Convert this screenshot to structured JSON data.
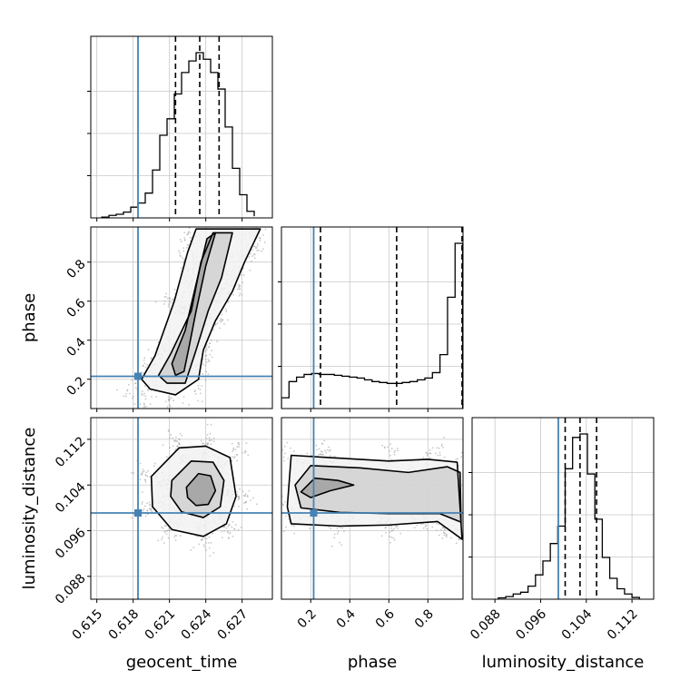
{
  "chart_data": {
    "type": "corner",
    "parameters": [
      "geocent_time",
      "phase",
      "luminosity_distance"
    ],
    "truths": {
      "geocent_time": 0.6184,
      "phase": 0.215,
      "luminosity_distance": 0.0991
    },
    "colors": {
      "truth": "#4682b4",
      "hist": "#000000",
      "grid": "#c8c8c8",
      "point": "#9a9a9a"
    },
    "grid": true,
    "quantiles": {
      "geocent_time": [
        0.6215,
        0.6235,
        0.6251
      ],
      "phase": [
        0.25,
        0.64,
        0.975
      ],
      "luminosity_distance": [
        0.1003,
        0.1029,
        0.1058
      ]
    },
    "axes": {
      "geocent_time": {
        "xlabel": "geocent_time",
        "range": [
          0.6145,
          0.6295
        ],
        "ticks": [
          0.615,
          0.618,
          0.621,
          0.624,
          0.627
        ],
        "tick_labels": [
          "0.615",
          "0.618",
          "0.621",
          "0.624",
          "0.627"
        ]
      },
      "phase": {
        "xlabel": "phase",
        "ylabel": "phase",
        "range": [
          0.05,
          0.98
        ],
        "ticks": [
          0.2,
          0.4,
          0.6,
          0.8
        ],
        "tick_labels": [
          "0.2",
          "0.4",
          "0.6",
          "0.8"
        ]
      },
      "luminosity_distance": {
        "xlabel": "luminosity_distance",
        "ylabel": "luminosity_distance",
        "range": [
          0.084,
          0.1158
        ],
        "ticks": [
          0.088,
          0.096,
          0.104,
          0.112
        ],
        "tick_labels": [
          "0.088",
          "0.096",
          "0.104",
          "0.112"
        ]
      }
    },
    "histograms": {
      "geocent_time": {
        "bins": [
          0.6154,
          0.616,
          0.6166,
          0.6172,
          0.6178,
          0.6184,
          0.619,
          0.6196,
          0.6202,
          0.6208,
          0.6214,
          0.622,
          0.6226,
          0.6232,
          0.6238,
          0.6244,
          0.625,
          0.6256,
          0.6262,
          0.6268,
          0.6274,
          0.628
        ],
        "values": [
          0.005,
          0.015,
          0.022,
          0.035,
          0.065,
          0.09,
          0.15,
          0.29,
          0.5,
          0.6,
          0.75,
          0.88,
          0.95,
          1.0,
          0.96,
          0.88,
          0.78,
          0.55,
          0.3,
          0.14,
          0.04,
          0.01
        ]
      },
      "phase": {
        "bins": [
          0.05,
          0.0887,
          0.1273,
          0.166,
          0.2047,
          0.2433,
          0.282,
          0.3207,
          0.3593,
          0.398,
          0.4367,
          0.4753,
          0.514,
          0.5527,
          0.5913,
          0.63,
          0.6687,
          0.7073,
          0.746,
          0.7847,
          0.8233,
          0.862,
          0.9007,
          0.9393,
          0.978
        ],
        "values": [
          0.06,
          0.15,
          0.175,
          0.19,
          0.195,
          0.19,
          0.19,
          0.185,
          0.18,
          0.175,
          0.17,
          0.16,
          0.15,
          0.145,
          0.14,
          0.14,
          0.145,
          0.15,
          0.16,
          0.17,
          0.2,
          0.3,
          0.62,
          0.92
        ]
      },
      "luminosity_distance": {
        "bins": [
          0.0886,
          0.0899,
          0.0912,
          0.0925,
          0.0938,
          0.0951,
          0.0964,
          0.0977,
          0.099,
          0.1003,
          0.1016,
          0.1029,
          0.1042,
          0.1055,
          0.1068,
          0.1081,
          0.1094,
          0.1107,
          0.112,
          0.1133
        ],
        "values": [
          0.008,
          0.015,
          0.03,
          0.04,
          0.075,
          0.14,
          0.22,
          0.32,
          0.42,
          0.75,
          0.93,
          0.95,
          0.72,
          0.46,
          0.24,
          0.12,
          0.06,
          0.03,
          0.01
        ]
      }
    },
    "contours": {
      "geocent_time__phase": {
        "levels": [
          [
            [
              0.6194,
              0.15
            ],
            [
              0.6215,
              0.12
            ],
            [
              0.6234,
              0.2
            ],
            [
              0.6238,
              0.35
            ],
            [
              0.6248,
              0.5
            ],
            [
              0.6262,
              0.65
            ],
            [
              0.6272,
              0.8
            ],
            [
              0.6285,
              0.97
            ],
            [
              0.6232,
              0.97
            ],
            [
              0.6225,
              0.85
            ],
            [
              0.6214,
              0.6
            ],
            [
              0.6198,
              0.32
            ],
            [
              0.6187,
              0.2
            ]
          ],
          [
            [
              0.6208,
              0.18
            ],
            [
              0.6223,
              0.18
            ],
            [
              0.6232,
              0.35
            ],
            [
              0.6242,
              0.55
            ],
            [
              0.6253,
              0.72
            ],
            [
              0.6262,
              0.95
            ],
            [
              0.6246,
              0.95
            ],
            [
              0.6236,
              0.8
            ],
            [
              0.6228,
              0.55
            ],
            [
              0.6211,
              0.33
            ],
            [
              0.6201,
              0.22
            ]
          ],
          [
            [
              0.6215,
              0.22
            ],
            [
              0.6222,
              0.24
            ],
            [
              0.6226,
              0.36
            ],
            [
              0.6232,
              0.55
            ],
            [
              0.624,
              0.78
            ],
            [
              0.6248,
              0.95
            ],
            [
              0.6241,
              0.92
            ],
            [
              0.6234,
              0.74
            ],
            [
              0.6223,
              0.45
            ],
            [
              0.6212,
              0.28
            ]
          ]
        ]
      },
      "geocent_time__luminosity_distance": {
        "levels": [
          [
            [
              0.6195,
              0.1055
            ],
            [
              0.6218,
              0.1105
            ],
            [
              0.624,
              0.1108
            ],
            [
              0.626,
              0.1088
            ],
            [
              0.6265,
              0.102
            ],
            [
              0.6257,
              0.0972
            ],
            [
              0.6238,
              0.095
            ],
            [
              0.6212,
              0.0962
            ],
            [
              0.6196,
              0.1002
            ]
          ],
          [
            [
              0.6212,
              0.1048
            ],
            [
              0.6228,
              0.1082
            ],
            [
              0.6246,
              0.108
            ],
            [
              0.6255,
              0.1048
            ],
            [
              0.6252,
              0.1002
            ],
            [
              0.6238,
              0.0983
            ],
            [
              0.622,
              0.0993
            ],
            [
              0.6211,
              0.102
            ]
          ],
          [
            [
              0.6224,
              0.1036
            ],
            [
              0.6234,
              0.106
            ],
            [
              0.6244,
              0.1056
            ],
            [
              0.6248,
              0.103
            ],
            [
              0.6242,
              0.1006
            ],
            [
              0.6232,
              0.1004
            ],
            [
              0.6225,
              0.1018
            ]
          ]
        ]
      },
      "phase__luminosity_distance": {
        "levels": [
          [
            [
              0.08,
              0.1002
            ],
            [
              0.1,
              0.1092
            ],
            [
              0.3,
              0.1088
            ],
            [
              0.6,
              0.1082
            ],
            [
              0.8,
              0.1085
            ],
            [
              0.95,
              0.108
            ],
            [
              0.975,
              0.0945
            ],
            [
              0.85,
              0.0976
            ],
            [
              0.6,
              0.097
            ],
            [
              0.35,
              0.0968
            ],
            [
              0.1,
              0.0972
            ]
          ],
          [
            [
              0.12,
              0.104
            ],
            [
              0.2,
              0.1074
            ],
            [
              0.45,
              0.107
            ],
            [
              0.7,
              0.1062
            ],
            [
              0.9,
              0.1072
            ],
            [
              0.965,
              0.1062
            ],
            [
              0.97,
              0.0975
            ],
            [
              0.86,
              0.099
            ],
            [
              0.6,
              0.099
            ],
            [
              0.35,
              0.0992
            ],
            [
              0.15,
              0.1
            ]
          ],
          [
            [
              0.15,
              0.1028
            ],
            [
              0.22,
              0.1052
            ],
            [
              0.34,
              0.1048
            ],
            [
              0.42,
              0.104
            ],
            [
              0.3,
              0.103
            ],
            [
              0.2,
              0.1018
            ]
          ]
        ]
      }
    }
  }
}
